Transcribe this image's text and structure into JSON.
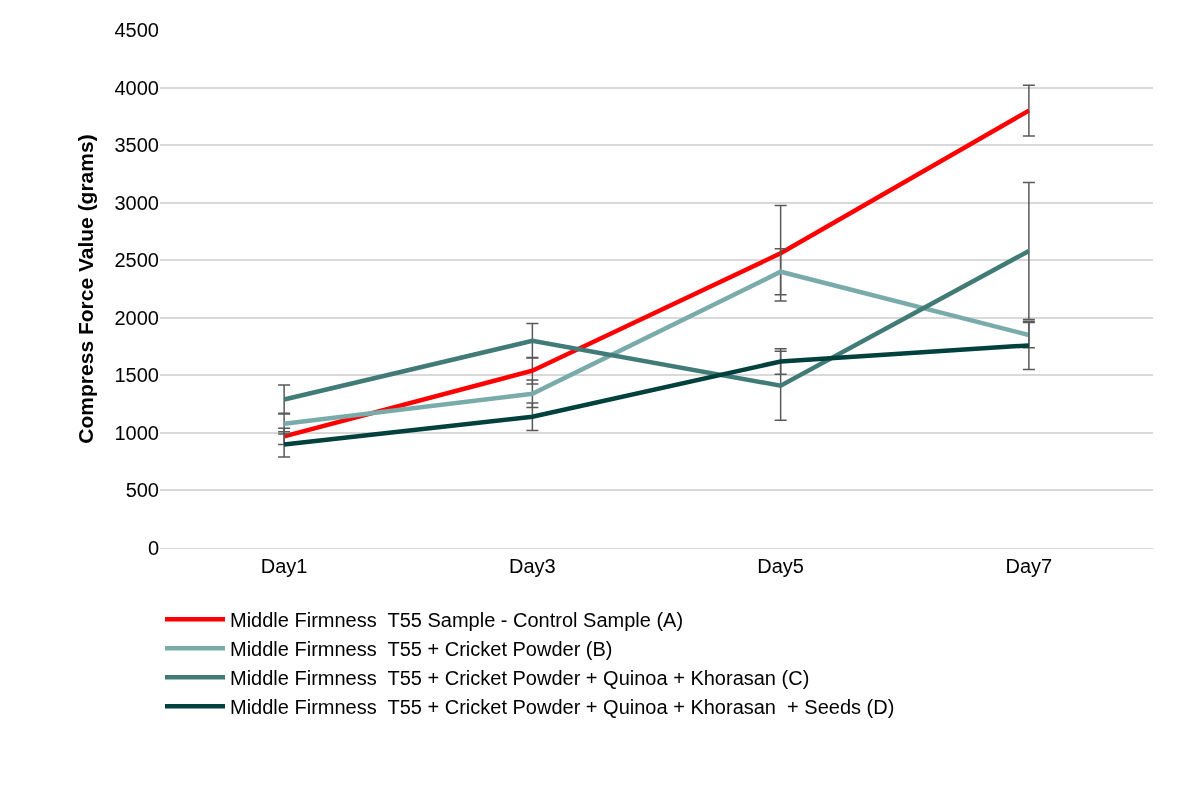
{
  "chart_data": {
    "type": "line",
    "ylabel": "Compress Force Value (grams)",
    "categories": [
      "Day1",
      "Day3",
      "Day5",
      "Day7"
    ],
    "ylim": [
      0,
      4500
    ],
    "yticks": [
      0,
      500,
      1000,
      1500,
      2000,
      2500,
      3000,
      3500,
      4000,
      4500
    ],
    "grid": "y",
    "legend": "bottom",
    "marker": "none",
    "line_style": "solid",
    "series": [
      {
        "name": "Middle Firmness  T55 Sample - Control Sample (A)",
        "color": "#ff0000",
        "values": [
          970,
          1540,
          2560,
          3800
        ],
        "errors": [
          70,
          115,
          415,
          220
        ]
      },
      {
        "name": "Middle Firmness  T55 + Cricket Powder (B)",
        "color": "#7aabab",
        "values": [
          1080,
          1340,
          2400,
          1850
        ],
        "errors": [
          90,
          120,
          200,
          110
        ]
      },
      {
        "name": "Middle Firmness  T55 + Cricket Powder + Quinoa + Khorasan (C)",
        "color": "#417b78",
        "values": [
          1290,
          1800,
          1410,
          2580
        ],
        "errors": [
          125,
          150,
          300,
          595
        ]
      },
      {
        "name": "Middle Firmness  T55 + Cricket Powder + Quinoa + Khorasan  + Seeds (D)",
        "color": "#00403d",
        "values": [
          900,
          1140,
          1620,
          1760
        ],
        "errors": [
          110,
          120,
          110,
          210
        ]
      }
    ]
  }
}
